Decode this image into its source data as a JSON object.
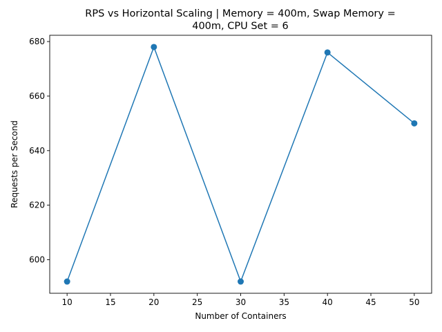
{
  "chart_data": {
    "type": "line",
    "title_lines": [
      "RPS vs Horizontal Scaling | Memory = 400m, Swap Memory =",
      "400m, CPU Set = 6"
    ],
    "xlabel": "Number of Containers",
    "ylabel": "Requests per Second",
    "x": [
      10,
      20,
      30,
      40,
      50
    ],
    "y": [
      592,
      678,
      592,
      676,
      650
    ],
    "xlim": [
      8,
      52
    ],
    "ylim": [
      587.7,
      682.3
    ],
    "xticks": [
      10,
      15,
      20,
      25,
      30,
      35,
      40,
      45,
      50
    ],
    "yticks": [
      600,
      620,
      640,
      660,
      680
    ],
    "grid": false,
    "marker": "circle",
    "line_color": "#1f77b4"
  }
}
